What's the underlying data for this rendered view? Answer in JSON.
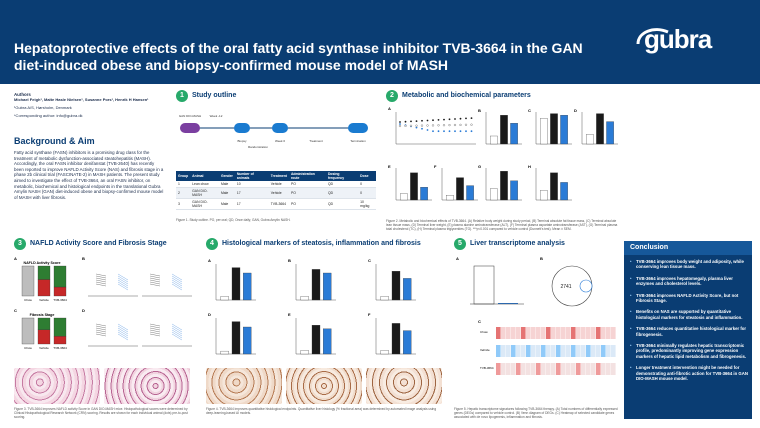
{
  "header": {
    "title": "Hepatoprotective effects of the oral fatty acid synthase inhibitor TVB-3664 in the GAN diet-induced obese and biopsy-confirmed mouse model of MASH",
    "logo_text": "gubra"
  },
  "authors": {
    "label": "Authors",
    "names": "Michael Feigh¹, Malte Hasle Nielsen¹, Susanne Pors¹, Henrik H Hansen¹",
    "affiliation": "¹Gubra A/S, Hørsholm, Denmark",
    "contact": "*Corresponding author: info@gubra.dk"
  },
  "background": {
    "heading": "Background & Aim",
    "p1": "Fatty acid synthase (FASN) inhibitors is a promising drug class for the treatment of metabolic dysfunction-associated steatohepatitis (MASH). Accordingly, the oral FASN inhibitor denifanstat (TVB-2640) has recently been reported to improve NAFLD Activity Score (NAS) and fibrosis stage in a phase 2b clinical trial (FASCINATE-2) in MASH patients. The present study aimed to investigate the effect of TVB-3664, an oral FASN inhibitor, on metabolic, biochemical and histological endpoints in the translational Gubra Amylin NASH (GAN) diet-induced obese and biopsy-confirmed mouse model of MASH with liver fibrosis."
  },
  "sections": {
    "s1": {
      "num": "1",
      "title": "Study outline"
    },
    "s2": {
      "num": "2",
      "title": "Metabolic and biochemical parameters"
    },
    "s3": {
      "num": "3",
      "title": "NAFLD Activity Score and Fibrosis Stage"
    },
    "s4": {
      "num": "4",
      "title": "Histological markers of steatosis, inflammation and fibrosis"
    },
    "s5": {
      "num": "5",
      "title": "Liver transcriptome analysis"
    }
  },
  "outline": {
    "nodes": [
      "GAN DIO-MASH",
      "Week -12",
      "Biopsy",
      "Randomization",
      "Week 0",
      "Treatment",
      "Termination"
    ],
    "caption": "Figure 1. Study outline. PO, per oral; QD, Once daily; GAN, Gubra Amylin NASH."
  },
  "study_table": {
    "headers": [
      "Group",
      "Animal",
      "Gender",
      "Number of animals",
      "Treatment",
      "Administration route",
      "Dosing frequency",
      "Dose"
    ],
    "rows": [
      [
        "1",
        "Lean chow",
        "Male",
        "10",
        "Vehicle",
        "PO",
        "QD",
        "0"
      ],
      [
        "2",
        "GAN DIO-MASH",
        "Male",
        "17",
        "Vehicle",
        "PO",
        "QD",
        "0"
      ],
      [
        "3",
        "GAN DIO-MASH",
        "Male",
        "17",
        "TVB-3664",
        "PO",
        "QD",
        "10 mg/kg"
      ]
    ]
  },
  "metabolic": {
    "panel_labels": [
      "A",
      "B",
      "C",
      "D",
      "E",
      "F",
      "G",
      "H"
    ],
    "legend": [
      "Chow",
      "Vehicle",
      "TVB-3664"
    ],
    "caption": "Figure 2. Metabolic and biochemical effects of TVB-3664. (A) Relative body weight during study period, (B) Terminal absolute fat tissue mass, (C) Terminal absolute lean tissue mass, (D) Terminal liver weight, (E) plasma alanine aminotransferase (ALT), (F) Terminal plasma aspartate aminotransferase (AST), (G) Terminal plasma total cholesterol (TC), (H) Terminal plasma triglycerides (TG). ***p<0.001 compared to vehicle control (Dunnett's test). Mean ± SEM."
  },
  "nas": {
    "chart_titles": [
      "NAFLD Activity Score",
      "Fibrosis Stage"
    ],
    "legend_nas": [
      "Lean",
      "Reduced/unchanged",
      "Improved"
    ],
    "groups": [
      "Chow",
      "Vehicle",
      "TVB-3664"
    ],
    "caption": "Figure 3. TVB-3664 improves NAFLD activity Score in GAN DIO-MASH mice. Histopathological scores were determined by Clinical Histopathological Research Network (CRN) scoring. Results are shown for each individual animal (dots) pre-to-post scoring."
  },
  "histo": {
    "caption": "Figure 4. TVB-3664 improves quantitative histological endpoints. Quantitative liver histology (% fractional area) was determined by automated image analysis using deep-learning-based AI models."
  },
  "transcriptome": {
    "venn_value": "2741",
    "heatmap_groups": [
      "Chow",
      "Vehicle",
      "TVB-3664"
    ],
    "caption": "Figure 5. Hepatic transcriptome signatures following TVB-3664 therapy. (A) Total numbers of differentially expressed genes (DEGs) compared to vehicle control. (B) Venn diagram of DEGs. (C) Heatmap of selected candidate genes associated with de novo lipogenesis, inflammation and fibrosis."
  },
  "conclusion": {
    "heading": "Conclusion",
    "items": [
      "TVB-3664 improves body weight and adiposity, while conserving lean tissue mass.",
      "TVB-3664 improves hepatomegaly, plasma liver enzymes and cholesterol levels.",
      "TVB-3664 improves NAFLD Activity Score, but not Fibrosis Stage.",
      "Benefits on NAS are supported by quantitative histological markers for steatosis and inflammation.",
      "TVB-3664 reduces quantitative histological marker for fibrogenesis.",
      "TVB-3664 minimally regulates hepatic transcriptomic profile, predominantly improving gene expression markers of hepatic lipid metabolism and fibrogenesis.",
      "Longer treatment intervention might be needed for demonstrating anti-fibrotic action for TVB-3664 in GAN DIO-MASH mouse model."
    ]
  },
  "colors": {
    "chow": "#ffffff",
    "vehicle": "#1a1a1a",
    "tvb": "#2a7bd6",
    "red": "#c62828"
  }
}
